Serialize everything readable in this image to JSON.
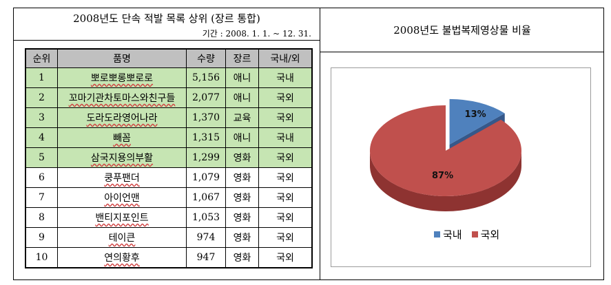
{
  "left": {
    "title": "2008년도 단속 적발 목록 상위 (장르 통합)",
    "period": "기간 : 2008. 1. 1. ~ 12. 31."
  },
  "right": {
    "title": "2008년도 불법복제영상물 비율"
  },
  "table": {
    "headers": [
      "순위",
      "품명",
      "수량",
      "장르",
      "국내/외"
    ],
    "rows": [
      {
        "rank": "1",
        "name": "뽀로뽀롱뽀로로",
        "qty": "5,156",
        "genre": "애니",
        "origin": "국내"
      },
      {
        "rank": "2",
        "name": "꼬마기관차토마스와친구들",
        "qty": "2,077",
        "genre": "애니",
        "origin": "국외"
      },
      {
        "rank": "3",
        "name": "도라도라영어나라",
        "qty": "1,370",
        "genre": "교육",
        "origin": "국외"
      },
      {
        "rank": "4",
        "name": "빼꼼",
        "qty": "1,315",
        "genre": "애니",
        "origin": "국내"
      },
      {
        "rank": "5",
        "name": "삼국지용의부활",
        "qty": "1,299",
        "genre": "영화",
        "origin": "국외"
      },
      {
        "rank": "6",
        "name": "쿵푸팬더",
        "qty": "1,079",
        "genre": "영화",
        "origin": "국외"
      },
      {
        "rank": "7",
        "name": "아이언맨",
        "qty": "1,067",
        "genre": "영화",
        "origin": "국외"
      },
      {
        "rank": "8",
        "name": "밴티지포인트",
        "qty": "1,053",
        "genre": "영화",
        "origin": "국외"
      },
      {
        "rank": "9",
        "name": "테이큰",
        "qty": "974",
        "genre": "영화",
        "origin": "국외"
      },
      {
        "rank": "10",
        "name": "연의황후",
        "qty": "947",
        "genre": "영화",
        "origin": "국외"
      }
    ],
    "highlight_color": "#c6e5b3",
    "header_color": "#c0c0c0"
  },
  "chart_data": {
    "type": "pie",
    "title": "",
    "categories": [
      "국내",
      "국외"
    ],
    "values": [
      13,
      87
    ],
    "labels": [
      "13%",
      "87%"
    ],
    "colors": [
      "#4f81bd",
      "#c0504d"
    ],
    "style": "3d, domestic slice exploded",
    "legend": "bottom"
  }
}
